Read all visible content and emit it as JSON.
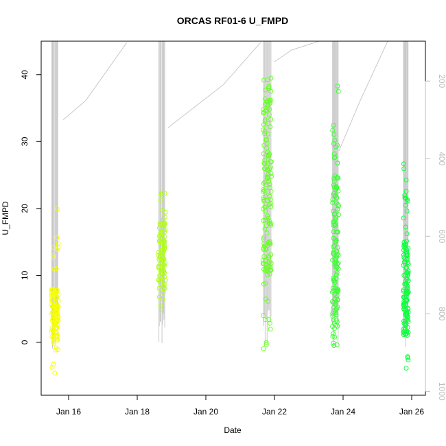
{
  "chart_data": {
    "type": "scatter",
    "title": "ORCAS RF01-6 U_FMPD",
    "xlabel": "Date",
    "ylabel": "U_FMPD",
    "x_ticks": [
      "Jan 16",
      "Jan 18",
      "Jan 20",
      "Jan 22",
      "Jan 24",
      "Jan 26"
    ],
    "x_tick_days": [
      16,
      18,
      20,
      22,
      24,
      26
    ],
    "xlim_days": [
      15.2,
      26.4
    ],
    "ylim": [
      -7.9,
      45
    ],
    "y_ticks": [
      0,
      10,
      20,
      30,
      40
    ],
    "right_axis": {
      "label": "",
      "reversed": true,
      "ylim": [
        1010,
        97
      ],
      "ticks": [
        200,
        400,
        600,
        800,
        1000
      ],
      "color": "#bdbdbd"
    },
    "grid": false,
    "colors": {
      "points_start": "#ffff00",
      "points_end": "#00ff40",
      "pressure_line": "#c8c8c8"
    },
    "series": [
      {
        "name": "",
        "flights": [
          {
            "center": 15.6,
            "spread": 0.2,
            "ymin": -6,
            "ymax": 20,
            "ylow": 0,
            "yhigh": 8,
            "n": 110
          },
          {
            "center": 18.72,
            "spread": 0.2,
            "ymin": 3.5,
            "ymax": 23,
            "ylow": 8,
            "yhigh": 18,
            "n": 90
          },
          {
            "center": 21.79,
            "spread": 0.25,
            "ymin": -1.5,
            "ymax": 43,
            "ylow": 10,
            "yhigh": 37,
            "n": 160
          },
          {
            "center": 23.78,
            "spread": 0.18,
            "ymin": -2,
            "ymax": 38.5,
            "ylow": 2,
            "yhigh": 25,
            "n": 130
          },
          {
            "center": 25.83,
            "spread": 0.15,
            "ymin": -4.7,
            "ymax": 27,
            "ylow": 1,
            "yhigh": 15,
            "n": 130
          }
        ]
      }
    ],
    "pressure_transits": [
      {
        "x": [
          15.84,
          16.5,
          17.7
        ],
        "y": [
          300,
          250,
          100
        ]
      },
      {
        "x": [
          18.9,
          20.5,
          21.6
        ],
        "y": [
          320,
          210,
          100
        ]
      },
      {
        "x": [
          22.0,
          22.5,
          23.3
        ],
        "y": [
          150,
          120,
          97
        ]
      },
      {
        "x": [
          23.88,
          24.5,
          25.3
        ],
        "y": [
          380,
          250,
          97
        ]
      }
    ]
  }
}
